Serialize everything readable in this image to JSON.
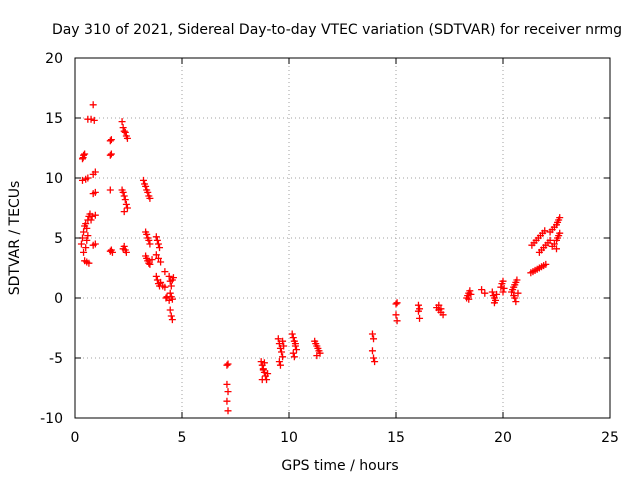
{
  "chart_data": {
    "type": "scatter",
    "title": "Day 310 of 2021, Sidereal Day-to-day VTEC variation (SDTVAR) for receiver nrmg",
    "xlabel": "GPS time / hours",
    "ylabel": "SDTVAR / TECUs",
    "xlim": [
      0,
      25
    ],
    "ylim": [
      -10,
      20
    ],
    "xticks": [
      0,
      5,
      10,
      15,
      20,
      25
    ],
    "yticks": [
      -10,
      -5,
      0,
      5,
      10,
      15,
      20
    ],
    "grid": true,
    "marker": "+",
    "color": "#ff0000",
    "series": [
      {
        "name": "SDTVAR",
        "points": [
          [
            0.35,
            11.6
          ],
          [
            0.4,
            11.9
          ],
          [
            0.45,
            12.0
          ],
          [
            0.38,
            11.7
          ],
          [
            0.35,
            9.8
          ],
          [
            0.5,
            9.9
          ],
          [
            0.6,
            10.0
          ],
          [
            0.3,
            4.5
          ],
          [
            0.35,
            5.0
          ],
          [
            0.4,
            5.5
          ],
          [
            0.45,
            6.0
          ],
          [
            0.5,
            6.2
          ],
          [
            0.55,
            5.8
          ],
          [
            0.6,
            6.5
          ],
          [
            0.65,
            6.8
          ],
          [
            0.7,
            7.0
          ],
          [
            0.75,
            6.5
          ],
          [
            0.8,
            6.8
          ],
          [
            0.5,
            4.2
          ],
          [
            0.55,
            4.8
          ],
          [
            0.6,
            5.2
          ],
          [
            0.4,
            3.8
          ],
          [
            0.45,
            3.1
          ],
          [
            0.55,
            3.0
          ],
          [
            0.65,
            2.9
          ],
          [
            0.6,
            14.9
          ],
          [
            0.75,
            14.9
          ],
          [
            0.85,
            16.1
          ],
          [
            0.9,
            14.8
          ],
          [
            0.85,
            10.3
          ],
          [
            0.95,
            10.5
          ],
          [
            0.85,
            8.7
          ],
          [
            0.95,
            8.8
          ],
          [
            0.85,
            4.4
          ],
          [
            0.95,
            4.5
          ],
          [
            0.95,
            6.9
          ],
          [
            1.65,
            13.1
          ],
          [
            1.7,
            13.2
          ],
          [
            1.65,
            11.9
          ],
          [
            1.7,
            12.0
          ],
          [
            1.65,
            9.0
          ],
          [
            1.7,
            4.0
          ],
          [
            1.75,
            3.8
          ],
          [
            1.65,
            3.9
          ],
          [
            2.2,
            14.7
          ],
          [
            2.25,
            14.2
          ],
          [
            2.3,
            13.9
          ],
          [
            2.35,
            13.8
          ],
          [
            2.4,
            13.5
          ],
          [
            2.45,
            13.3
          ],
          [
            2.2,
            9.0
          ],
          [
            2.25,
            8.8
          ],
          [
            2.3,
            8.5
          ],
          [
            2.35,
            8.2
          ],
          [
            2.4,
            7.8
          ],
          [
            2.45,
            7.5
          ],
          [
            2.3,
            7.2
          ],
          [
            2.25,
            4.1
          ],
          [
            2.3,
            4.3
          ],
          [
            2.35,
            4.0
          ],
          [
            2.4,
            3.8
          ],
          [
            3.2,
            9.8
          ],
          [
            3.25,
            9.5
          ],
          [
            3.3,
            9.3
          ],
          [
            3.35,
            9.0
          ],
          [
            3.4,
            8.8
          ],
          [
            3.45,
            8.5
          ],
          [
            3.5,
            8.3
          ],
          [
            3.3,
            5.5
          ],
          [
            3.35,
            5.3
          ],
          [
            3.4,
            5.0
          ],
          [
            3.45,
            4.8
          ],
          [
            3.5,
            4.5
          ],
          [
            3.3,
            3.5
          ],
          [
            3.35,
            3.3
          ],
          [
            3.4,
            3.1
          ],
          [
            3.45,
            2.9
          ],
          [
            3.5,
            2.8
          ],
          [
            3.6,
            3.2
          ],
          [
            3.8,
            5.1
          ],
          [
            3.85,
            4.8
          ],
          [
            3.9,
            4.5
          ],
          [
            3.95,
            4.2
          ],
          [
            3.8,
            3.6
          ],
          [
            3.9,
            3.3
          ],
          [
            4.0,
            3.0
          ],
          [
            3.8,
            1.8
          ],
          [
            3.85,
            1.5
          ],
          [
            3.9,
            1.2
          ],
          [
            3.95,
            1.0
          ],
          [
            4.0,
            1.3
          ],
          [
            4.1,
            1.0
          ],
          [
            4.2,
            2.2
          ],
          [
            4.2,
            0.9
          ],
          [
            4.25,
            0.0
          ],
          [
            4.3,
            0.1
          ],
          [
            4.4,
            -0.2
          ],
          [
            4.4,
            1.8
          ],
          [
            4.45,
            1.4
          ],
          [
            4.5,
            1.0
          ],
          [
            4.55,
            1.5
          ],
          [
            4.6,
            1.7
          ],
          [
            4.45,
            0.4
          ],
          [
            4.5,
            0.1
          ],
          [
            4.55,
            -0.1
          ],
          [
            4.45,
            -1.0
          ],
          [
            4.5,
            -1.5
          ],
          [
            4.55,
            -1.8
          ],
          [
            7.1,
            -5.6
          ],
          [
            7.15,
            -5.5
          ],
          [
            7.1,
            -7.2
          ],
          [
            7.15,
            -7.8
          ],
          [
            7.1,
            -8.6
          ],
          [
            7.15,
            -9.4
          ],
          [
            8.7,
            -5.3
          ],
          [
            8.75,
            -5.6
          ],
          [
            8.8,
            -5.9
          ],
          [
            8.85,
            -6.2
          ],
          [
            8.9,
            -6.5
          ],
          [
            8.95,
            -6.8
          ],
          [
            9.0,
            -6.3
          ],
          [
            8.75,
            -6.8
          ],
          [
            8.8,
            -6.0
          ],
          [
            8.85,
            -5.4
          ],
          [
            9.5,
            -3.4
          ],
          [
            9.55,
            -3.8
          ],
          [
            9.6,
            -4.2
          ],
          [
            9.65,
            -4.5
          ],
          [
            9.7,
            -4.9
          ],
          [
            9.55,
            -5.3
          ],
          [
            9.6,
            -5.6
          ],
          [
            9.7,
            -3.6
          ],
          [
            9.75,
            -4.0
          ],
          [
            10.15,
            -3.0
          ],
          [
            10.2,
            -3.3
          ],
          [
            10.25,
            -3.6
          ],
          [
            10.3,
            -4.0
          ],
          [
            10.35,
            -4.3
          ],
          [
            10.2,
            -4.6
          ],
          [
            10.25,
            -4.9
          ],
          [
            10.3,
            -3.8
          ],
          [
            11.2,
            -3.6
          ],
          [
            11.25,
            -3.8
          ],
          [
            11.3,
            -4.0
          ],
          [
            11.35,
            -4.2
          ],
          [
            11.4,
            -4.4
          ],
          [
            11.45,
            -4.6
          ],
          [
            11.3,
            -4.8
          ],
          [
            13.9,
            -3.0
          ],
          [
            13.95,
            -3.4
          ],
          [
            13.9,
            -4.4
          ],
          [
            13.95,
            -5.0
          ],
          [
            14.0,
            -5.3
          ],
          [
            15.0,
            -0.5
          ],
          [
            15.05,
            -0.4
          ],
          [
            15.0,
            -1.4
          ],
          [
            15.05,
            -1.9
          ],
          [
            16.05,
            -0.6
          ],
          [
            16.1,
            -0.9
          ],
          [
            16.05,
            -1.1
          ],
          [
            16.1,
            -1.7
          ],
          [
            16.9,
            -0.8
          ],
          [
            17.0,
            -1.0
          ],
          [
            17.1,
            -1.2
          ],
          [
            17.2,
            -1.4
          ],
          [
            17.0,
            -0.6
          ],
          [
            17.1,
            -0.9
          ],
          [
            18.3,
            0.0
          ],
          [
            18.35,
            0.2
          ],
          [
            18.4,
            0.4
          ],
          [
            18.45,
            0.6
          ],
          [
            18.5,
            0.3
          ],
          [
            18.4,
            -0.1
          ],
          [
            19.0,
            0.7
          ],
          [
            19.15,
            0.4
          ],
          [
            19.5,
            0.5
          ],
          [
            19.55,
            0.2
          ],
          [
            19.6,
            0.0
          ],
          [
            19.65,
            -0.2
          ],
          [
            19.7,
            0.3
          ],
          [
            19.6,
            -0.4
          ],
          [
            19.9,
            0.9
          ],
          [
            19.95,
            1.2
          ],
          [
            20.0,
            1.4
          ],
          [
            20.05,
            0.8
          ],
          [
            20.0,
            0.5
          ],
          [
            20.4,
            0.5
          ],
          [
            20.45,
            0.7
          ],
          [
            20.5,
            0.9
          ],
          [
            20.55,
            1.1
          ],
          [
            20.6,
            1.3
          ],
          [
            20.65,
            1.5
          ],
          [
            20.5,
            0.2
          ],
          [
            20.55,
            0.0
          ],
          [
            20.6,
            -0.3
          ],
          [
            20.7,
            0.4
          ],
          [
            21.3,
            2.1
          ],
          [
            21.4,
            2.2
          ],
          [
            21.5,
            2.3
          ],
          [
            21.6,
            2.4
          ],
          [
            21.7,
            2.5
          ],
          [
            21.8,
            2.6
          ],
          [
            21.9,
            2.7
          ],
          [
            22.0,
            2.8
          ],
          [
            21.35,
            4.4
          ],
          [
            21.45,
            4.6
          ],
          [
            21.55,
            4.8
          ],
          [
            21.65,
            5.0
          ],
          [
            21.75,
            5.2
          ],
          [
            21.85,
            5.4
          ],
          [
            21.95,
            5.6
          ],
          [
            21.7,
            3.8
          ],
          [
            21.8,
            4.0
          ],
          [
            21.9,
            4.2
          ],
          [
            22.0,
            4.4
          ],
          [
            22.1,
            4.6
          ],
          [
            22.2,
            4.8
          ],
          [
            22.2,
            5.5
          ],
          [
            22.3,
            5.7
          ],
          [
            22.4,
            5.9
          ],
          [
            22.5,
            6.1
          ],
          [
            22.55,
            6.3
          ],
          [
            22.6,
            6.5
          ],
          [
            22.65,
            6.7
          ],
          [
            22.3,
            4.3
          ],
          [
            22.4,
            4.5
          ],
          [
            22.5,
            4.8
          ],
          [
            22.55,
            5.0
          ],
          [
            22.6,
            5.2
          ],
          [
            22.65,
            5.4
          ],
          [
            22.5,
            4.1
          ]
        ]
      }
    ]
  }
}
